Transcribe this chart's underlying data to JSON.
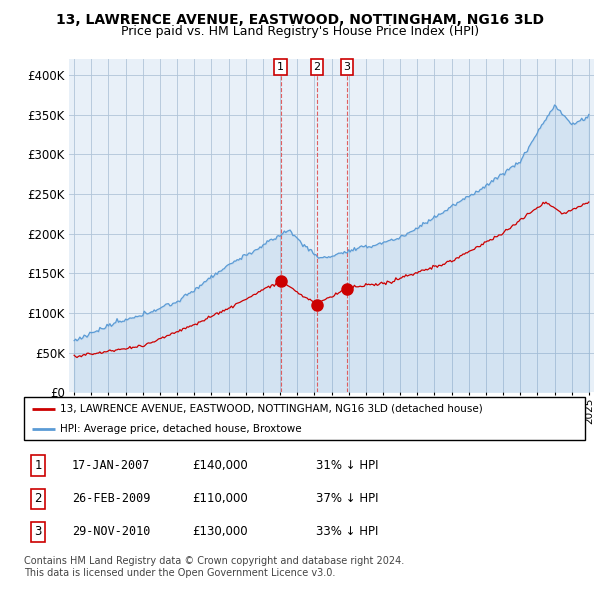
{
  "title": "13, LAWRENCE AVENUE, EASTWOOD, NOTTINGHAM, NG16 3LD",
  "subtitle": "Price paid vs. HM Land Registry's House Price Index (HPI)",
  "hpi_color": "#5b9bd5",
  "hpi_fill_color": "#dce9f5",
  "sale_color": "#cc0000",
  "sale_dates": [
    2007.04,
    2009.15,
    2010.91
  ],
  "sale_prices": [
    140000,
    110000,
    130000
  ],
  "sale_labels": [
    "1",
    "2",
    "3"
  ],
  "legend_sale": "13, LAWRENCE AVENUE, EASTWOOD, NOTTINGHAM, NG16 3LD (detached house)",
  "legend_hpi": "HPI: Average price, detached house, Broxtowe",
  "table_rows": [
    [
      "1",
      "17-JAN-2007",
      "£140,000",
      "31% ↓ HPI"
    ],
    [
      "2",
      "26-FEB-2009",
      "£110,000",
      "37% ↓ HPI"
    ],
    [
      "3",
      "29-NOV-2010",
      "£130,000",
      "33% ↓ HPI"
    ]
  ],
  "footnote1": "Contains HM Land Registry data © Crown copyright and database right 2024.",
  "footnote2": "This data is licensed under the Open Government Licence v3.0.",
  "ylim": [
    0,
    420000
  ],
  "yticks": [
    0,
    50000,
    100000,
    150000,
    200000,
    250000,
    300000,
    350000,
    400000
  ],
  "ytick_labels": [
    "£0",
    "£50K",
    "£100K",
    "£150K",
    "£200K",
    "£250K",
    "£300K",
    "£350K",
    "£400K"
  ],
  "background_color": "#ffffff",
  "plot_bg_color": "#e8f0f8"
}
